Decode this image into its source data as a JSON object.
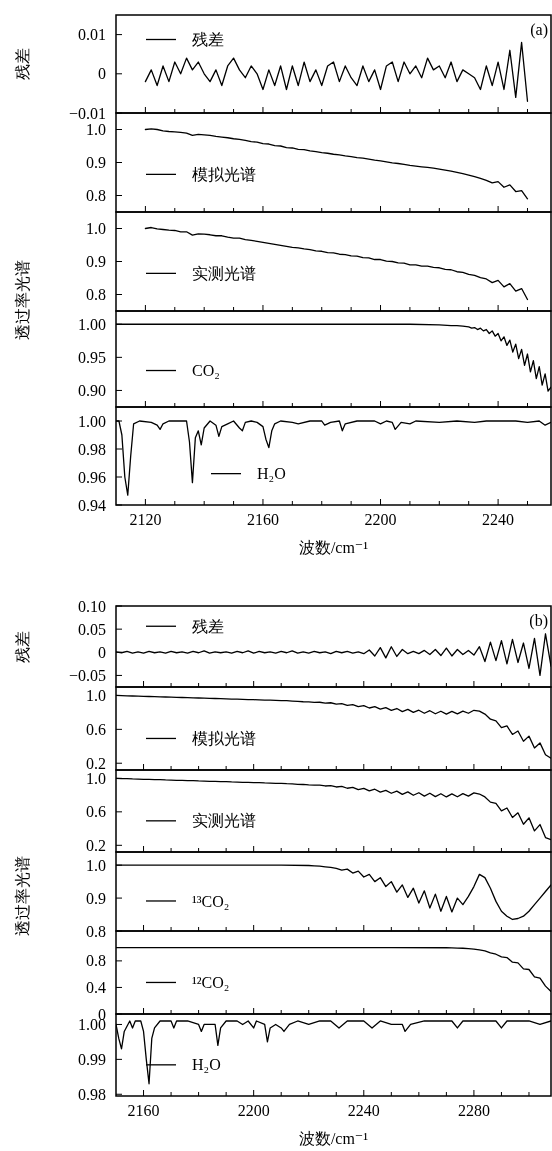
{
  "chart_data": [
    {
      "type": "line",
      "ylabel": "残差",
      "annotations": [
        "(a)"
      ],
      "legend": "top left",
      "tick_labels": "y",
      "xlim": [
        2110,
        2258
      ],
      "ylim": [
        -0.01,
        0.015
      ],
      "xticks": [
        2120,
        {
          "value": 2130,
          "label": null
        },
        {
          "value": 2140,
          "label": null
        },
        {
          "value": 2150,
          "label": null
        },
        2160,
        {
          "value": 2170,
          "label": null
        },
        {
          "value": 2180,
          "label": null
        },
        {
          "value": 2190,
          "label": null
        },
        2200,
        {
          "value": 2210,
          "label": null
        },
        {
          "value": 2220,
          "label": null
        },
        {
          "value": 2230,
          "label": null
        },
        2240,
        {
          "value": 2250,
          "label": null
        }
      ],
      "yticks": [
        {
          "value": -0.01,
          "label": "−0.01"
        },
        0,
        0.01
      ],
      "x": [
        2120,
        2122,
        2124,
        2126,
        2128,
        2130,
        2132,
        2134,
        2136,
        2138,
        2140,
        2142,
        2144,
        2146,
        2148,
        2150,
        2152,
        2154,
        2156,
        2158,
        2160,
        2162,
        2164,
        2166,
        2168,
        2170,
        2172,
        2174,
        2176,
        2178,
        2180,
        2182,
        2184,
        2186,
        2188,
        2190,
        2192,
        2194,
        2196,
        2198,
        2200,
        2202,
        2204,
        2206,
        2208,
        2210,
        2212,
        2214,
        2216,
        2218,
        2220,
        2222,
        2224,
        2226,
        2228,
        2230,
        2232,
        2234,
        2236,
        2238,
        2240,
        2242,
        2244,
        2246,
        2248,
        2250
      ],
      "series": [
        {
          "name": "残差",
          "color": "#000000",
          "values": [
            -0.002,
            0.001,
            -0.003,
            0.002,
            -0.002,
            0.003,
            0,
            0.004,
            0.001,
            0.003,
            0,
            -0.002,
            0.001,
            -0.003,
            0.002,
            0.004,
            0.001,
            -0.001,
            0.002,
            0,
            -0.004,
            0.001,
            -0.003,
            0.002,
            -0.004,
            0.002,
            -0.003,
            0.003,
            -0.002,
            0.001,
            -0.003,
            0.002,
            0.003,
            -0.002,
            0.002,
            -0.001,
            -0.003,
            0.002,
            -0.002,
            0.001,
            -0.004,
            0.002,
            0.003,
            -0.002,
            0.003,
            0,
            0.002,
            -0.001,
            0.004,
            0.001,
            0.002,
            -0.001,
            0.003,
            -0.002,
            0.001,
            0,
            -0.001,
            -0.004,
            0.002,
            -0.003,
            0.003,
            -0.004,
            0.006,
            -0.006,
            0.008,
            -0.007
          ]
        }
      ]
    },
    {
      "type": "line",
      "legend": "left",
      "tick_labels": "y",
      "xlim": [
        2110,
        2258
      ],
      "ylim": [
        0.75,
        1.05
      ],
      "xticks": [
        2120,
        {
          "value": 2130,
          "label": null
        },
        {
          "value": 2140,
          "label": null
        },
        {
          "value": 2150,
          "label": null
        },
        2160,
        {
          "value": 2170,
          "label": null
        },
        {
          "value": 2180,
          "label": null
        },
        {
          "value": 2190,
          "label": null
        },
        2200,
        {
          "value": 2210,
          "label": null
        },
        {
          "value": 2220,
          "label": null
        },
        {
          "value": 2230,
          "label": null
        },
        2240,
        {
          "value": 2250,
          "label": null
        }
      ],
      "yticks": [
        0.8,
        0.9,
        {
          "value": 1,
          "label": "1.0"
        }
      ],
      "x": [
        2120,
        2122,
        2124,
        2126,
        2128,
        2130,
        2132,
        2134,
        2136,
        2138,
        2140,
        2142,
        2144,
        2146,
        2148,
        2150,
        2152,
        2154,
        2156,
        2158,
        2160,
        2162,
        2164,
        2166,
        2168,
        2170,
        2172,
        2174,
        2176,
        2178,
        2180,
        2182,
        2184,
        2186,
        2188,
        2190,
        2192,
        2194,
        2196,
        2198,
        2200,
        2202,
        2204,
        2206,
        2208,
        2210,
        2212,
        2214,
        2216,
        2218,
        2220,
        2222,
        2224,
        2226,
        2228,
        2230,
        2232,
        2234,
        2236,
        2238,
        2240,
        2242,
        2244,
        2246,
        2248,
        2250
      ],
      "series": [
        {
          "name": "模拟光谱",
          "color": "#000000",
          "values": [
            1.0,
            1.002,
            1.0,
            0.996,
            0.994,
            0.993,
            0.991,
            0.989,
            0.982,
            0.985,
            0.984,
            0.982,
            0.979,
            0.977,
            0.975,
            0.972,
            0.97,
            0.967,
            0.963,
            0.962,
            0.957,
            0.956,
            0.951,
            0.95,
            0.945,
            0.944,
            0.94,
            0.939,
            0.935,
            0.933,
            0.93,
            0.928,
            0.925,
            0.923,
            0.92,
            0.918,
            0.915,
            0.913,
            0.91,
            0.907,
            0.905,
            0.902,
            0.899,
            0.897,
            0.894,
            0.891,
            0.889,
            0.887,
            0.885,
            0.883,
            0.88,
            0.877,
            0.874,
            0.87,
            0.866,
            0.862,
            0.857,
            0.852,
            0.846,
            0.838,
            0.842,
            0.825,
            0.832,
            0.812,
            0.815,
            0.79
          ]
        }
      ]
    },
    {
      "type": "line",
      "legend": "left",
      "tick_labels": "y",
      "xlim": [
        2110,
        2258
      ],
      "ylim": [
        0.75,
        1.05
      ],
      "xticks": [
        2120,
        {
          "value": 2130,
          "label": null
        },
        {
          "value": 2140,
          "label": null
        },
        {
          "value": 2150,
          "label": null
        },
        2160,
        {
          "value": 2170,
          "label": null
        },
        {
          "value": 2180,
          "label": null
        },
        {
          "value": 2190,
          "label": null
        },
        2200,
        {
          "value": 2210,
          "label": null
        },
        {
          "value": 2220,
          "label": null
        },
        {
          "value": 2230,
          "label": null
        },
        2240,
        {
          "value": 2250,
          "label": null
        }
      ],
      "yticks": [
        0.8,
        0.9,
        {
          "value": 1,
          "label": "1.0"
        }
      ],
      "x": [
        2120,
        2122,
        2124,
        2126,
        2128,
        2130,
        2132,
        2134,
        2136,
        2138,
        2140,
        2142,
        2144,
        2146,
        2148,
        2150,
        2152,
        2154,
        2156,
        2158,
        2160,
        2162,
        2164,
        2166,
        2168,
        2170,
        2172,
        2174,
        2176,
        2178,
        2180,
        2182,
        2184,
        2186,
        2188,
        2190,
        2192,
        2194,
        2196,
        2198,
        2200,
        2202,
        2204,
        2206,
        2208,
        2210,
        2212,
        2214,
        2216,
        2218,
        2220,
        2222,
        2224,
        2226,
        2228,
        2230,
        2232,
        2234,
        2236,
        2238,
        2240,
        2242,
        2244,
        2246,
        2248,
        2250
      ],
      "series": [
        {
          "name": "实测光谱",
          "color": "#000000",
          "values": [
            1.0,
            1.003,
            0.999,
            0.997,
            0.995,
            0.994,
            0.99,
            0.99,
            0.98,
            0.984,
            0.983,
            0.981,
            0.978,
            0.978,
            0.974,
            0.971,
            0.971,
            0.966,
            0.964,
            0.961,
            0.958,
            0.955,
            0.952,
            0.949,
            0.946,
            0.943,
            0.941,
            0.938,
            0.936,
            0.932,
            0.931,
            0.927,
            0.926,
            0.922,
            0.921,
            0.917,
            0.916,
            0.912,
            0.911,
            0.906,
            0.906,
            0.901,
            0.9,
            0.896,
            0.895,
            0.89,
            0.89,
            0.886,
            0.886,
            0.882,
            0.881,
            0.876,
            0.875,
            0.869,
            0.867,
            0.861,
            0.858,
            0.851,
            0.847,
            0.836,
            0.843,
            0.823,
            0.833,
            0.81,
            0.818,
            0.785
          ]
        }
      ]
    },
    {
      "type": "line",
      "ylabel": "透过率光谱",
      "legend": "left",
      "tick_labels": "y",
      "xlim": [
        2110,
        2258
      ],
      "ylim": [
        0.875,
        1.02
      ],
      "xticks": [
        2120,
        {
          "value": 2130,
          "label": null
        },
        {
          "value": 2140,
          "label": null
        },
        {
          "value": 2150,
          "label": null
        },
        2160,
        {
          "value": 2170,
          "label": null
        },
        {
          "value": 2180,
          "label": null
        },
        {
          "value": 2190,
          "label": null
        },
        2200,
        {
          "value": 2210,
          "label": null
        },
        {
          "value": 2220,
          "label": null
        },
        {
          "value": 2230,
          "label": null
        },
        2240,
        {
          "value": 2250,
          "label": null
        }
      ],
      "yticks": [
        {
          "value": 0.9,
          "label": "0.90"
        },
        0.95,
        {
          "value": 1,
          "label": "1.00"
        }
      ],
      "x": [
        2110,
        2150,
        2190,
        2210,
        2220,
        2224,
        2226,
        2228,
        2230,
        2231,
        2232,
        2233,
        2234,
        2235,
        2236,
        2237,
        2238,
        2239,
        2240,
        2241,
        2242,
        2243,
        2244,
        2245,
        2246,
        2247,
        2248,
        2249,
        2250,
        2251,
        2252,
        2253,
        2254,
        2255,
        2256,
        2257,
        2258
      ],
      "series": [
        {
          "name": "CO₂",
          "color": "#000000",
          "values": [
            1.0,
            1.0,
            1.0,
            1.0,
            0.999,
            0.998,
            0.998,
            0.997,
            0.996,
            0.994,
            0.995,
            0.992,
            0.994,
            0.99,
            0.992,
            0.986,
            0.99,
            0.982,
            0.986,
            0.975,
            0.981,
            0.968,
            0.976,
            0.958,
            0.97,
            0.948,
            0.962,
            0.938,
            0.955,
            0.928,
            0.945,
            0.918,
            0.936,
            0.908,
            0.925,
            0.899,
            0.905
          ]
        }
      ]
    },
    {
      "type": "line",
      "xlabel": "波数/cm⁻¹",
      "legend": "bottom",
      "xlim": [
        2110,
        2258
      ],
      "ylim": [
        0.94,
        1.01
      ],
      "xticks": [
        2120,
        {
          "value": 2130,
          "label": null
        },
        {
          "value": 2140,
          "label": null
        },
        {
          "value": 2150,
          "label": null
        },
        2160,
        {
          "value": 2170,
          "label": null
        },
        {
          "value": 2180,
          "label": null
        },
        {
          "value": 2190,
          "label": null
        },
        2200,
        {
          "value": 2210,
          "label": null
        },
        {
          "value": 2220,
          "label": null
        },
        {
          "value": 2230,
          "label": null
        },
        2240,
        {
          "value": 2250,
          "label": null
        }
      ],
      "yticks": [
        {
          "value": 0.94,
          "label": "0.94"
        },
        {
          "value": 0.96,
          "label": "0.96"
        },
        {
          "value": 0.98,
          "label": "0.98"
        },
        {
          "value": 1,
          "label": "1.00"
        }
      ],
      "x": [
        2110,
        2111,
        2112,
        2113,
        2114,
        2115,
        2116,
        2118,
        2122,
        2124,
        2125,
        2126,
        2128,
        2134,
        2135,
        2136,
        2137,
        2138,
        2139,
        2140,
        2142,
        2144,
        2145,
        2146,
        2148,
        2150,
        2152,
        2153,
        2154,
        2156,
        2158,
        2160,
        2161,
        2162,
        2163,
        2164,
        2166,
        2170,
        2172,
        2176,
        2180,
        2181,
        2183,
        2186,
        2187,
        2188,
        2192,
        2198,
        2200,
        2202,
        2204,
        2205,
        2207,
        2210,
        2212,
        2220,
        2226,
        2232,
        2236,
        2246,
        2250,
        2254,
        2256,
        2258
      ],
      "series": [
        {
          "name": "H₂O",
          "color": "#000000",
          "values": [
            1.0,
            1.0,
            0.99,
            0.96,
            0.947,
            0.975,
            0.998,
            1.0,
            0.999,
            0.997,
            0.994,
            0.998,
            1.0,
            1.0,
            0.985,
            0.956,
            0.988,
            0.993,
            0.983,
            0.995,
            1.0,
            0.997,
            0.989,
            0.996,
            0.998,
            1.0,
            0.995,
            0.993,
            0.999,
            1.0,
            0.999,
            0.996,
            0.987,
            0.981,
            0.993,
            0.998,
            1.0,
            0.999,
            0.998,
            1.0,
            1.0,
            0.997,
            0.999,
            1.0,
            0.993,
            0.998,
            1.0,
            1.0,
            0.998,
            1.0,
            0.999,
            0.994,
            0.999,
            0.998,
            1.0,
            0.999,
            1.0,
            0.999,
            1.0,
            1.0,
            0.999,
            1.0,
            0.997,
            0.999
          ]
        }
      ]
    },
    {
      "type": "line",
      "ylabel": "残差",
      "annotations": [
        "(b)"
      ],
      "legend": "top left",
      "tick_labels": "y",
      "xlim": [
        2150,
        2308
      ],
      "ylim": [
        -0.075,
        0.1
      ],
      "xticks": [
        2160,
        {
          "value": 2170,
          "label": null
        },
        {
          "value": 2180,
          "label": null
        },
        {
          "value": 2190,
          "label": null
        },
        2200,
        {
          "value": 2210,
          "label": null
        },
        {
          "value": 2220,
          "label": null
        },
        {
          "value": 2230,
          "label": null
        },
        2240,
        {
          "value": 2250,
          "label": null
        },
        {
          "value": 2260,
          "label": null
        },
        {
          "value": 2270,
          "label": null
        },
        2280,
        {
          "value": 2290,
          "label": null
        },
        {
          "value": 2300,
          "label": null
        }
      ],
      "yticks": [
        {
          "value": -0.05,
          "label": "−0.05"
        },
        0,
        0.05,
        {
          "value": 0.1,
          "label": "0.10"
        }
      ],
      "x": [
        2150,
        2152,
        2154,
        2156,
        2158,
        2160,
        2162,
        2164,
        2166,
        2168,
        2170,
        2172,
        2174,
        2176,
        2178,
        2180,
        2182,
        2184,
        2186,
        2188,
        2190,
        2192,
        2194,
        2196,
        2198,
        2200,
        2202,
        2204,
        2206,
        2208,
        2210,
        2212,
        2214,
        2216,
        2218,
        2220,
        2222,
        2224,
        2226,
        2228,
        2230,
        2232,
        2234,
        2236,
        2238,
        2240,
        2242,
        2244,
        2246,
        2248,
        2250,
        2252,
        2254,
        2256,
        2258,
        2260,
        2262,
        2264,
        2266,
        2268,
        2270,
        2272,
        2274,
        2276,
        2278,
        2280,
        2282,
        2284,
        2286,
        2288,
        2290,
        2292,
        2294,
        2296,
        2298,
        2300,
        2302,
        2304,
        2306,
        2308
      ],
      "series": [
        {
          "name": "残差",
          "color": "#000000",
          "values": [
            0.001,
            -0.001,
            0.002,
            -0.002,
            0.001,
            -0.002,
            0.002,
            -0.001,
            0.001,
            -0.002,
            0.002,
            -0.001,
            0.001,
            -0.002,
            0.002,
            -0.001,
            0.003,
            -0.002,
            0.001,
            -0.001,
            0.001,
            -0.002,
            0.002,
            -0.001,
            0.003,
            -0.002,
            0.002,
            -0.001,
            0.001,
            -0.002,
            0.002,
            -0.001,
            0.003,
            -0.002,
            0.001,
            -0.002,
            0.002,
            -0.001,
            0.001,
            -0.003,
            0.002,
            -0.001,
            0.002,
            -0.002,
            0.001,
            -0.003,
            0.005,
            -0.008,
            0.01,
            -0.012,
            0.012,
            -0.009,
            0.006,
            -0.003,
            0.002,
            -0.003,
            0.004,
            -0.005,
            0.006,
            -0.007,
            0.009,
            -0.008,
            0.006,
            -0.005,
            0.004,
            -0.006,
            0.012,
            -0.02,
            0.022,
            -0.018,
            0.025,
            -0.025,
            0.028,
            -0.022,
            0.02,
            -0.035,
            0.03,
            -0.05,
            0.04,
            -0.03
          ]
        }
      ]
    },
    {
      "type": "line",
      "legend": "left",
      "tick_labels": "y",
      "xlim": [
        2150,
        2308
      ],
      "ylim": [
        0.12,
        1.1
      ],
      "xticks": [
        2160,
        {
          "value": 2170,
          "label": null
        },
        {
          "value": 2180,
          "label": null
        },
        {
          "value": 2190,
          "label": null
        },
        2200,
        {
          "value": 2210,
          "label": null
        },
        {
          "value": 2220,
          "label": null
        },
        {
          "value": 2230,
          "label": null
        },
        2240,
        {
          "value": 2250,
          "label": null
        },
        {
          "value": 2260,
          "label": null
        },
        {
          "value": 2270,
          "label": null
        },
        2280,
        {
          "value": 2290,
          "label": null
        },
        {
          "value": 2300,
          "label": null
        }
      ],
      "yticks": [
        0.2,
        0.6,
        {
          "value": 1,
          "label": "1.0"
        }
      ],
      "x": [
        2150,
        2152,
        2154,
        2156,
        2158,
        2160,
        2162,
        2164,
        2166,
        2168,
        2170,
        2172,
        2174,
        2176,
        2178,
        2180,
        2182,
        2184,
        2186,
        2188,
        2190,
        2192,
        2194,
        2196,
        2198,
        2200,
        2202,
        2204,
        2206,
        2208,
        2210,
        2212,
        2214,
        2216,
        2218,
        2220,
        2222,
        2224,
        2226,
        2228,
        2230,
        2232,
        2234,
        2236,
        2238,
        2240,
        2242,
        2244,
        2246,
        2248,
        2250,
        2252,
        2254,
        2256,
        2258,
        2260,
        2262,
        2264,
        2266,
        2268,
        2270,
        2272,
        2274,
        2276,
        2278,
        2280,
        2282,
        2284,
        2286,
        2288,
        2290,
        2292,
        2294,
        2296,
        2298,
        2300,
        2302,
        2304,
        2306,
        2308
      ],
      "series": [
        {
          "name": "模拟光谱",
          "color": "#000000",
          "values": [
            1.0,
            0.998,
            0.996,
            0.994,
            0.992,
            0.99,
            0.988,
            0.986,
            0.984,
            0.982,
            0.98,
            0.978,
            0.976,
            0.974,
            0.972,
            0.97,
            0.968,
            0.966,
            0.964,
            0.962,
            0.96,
            0.958,
            0.956,
            0.954,
            0.952,
            0.95,
            0.948,
            0.946,
            0.944,
            0.942,
            0.94,
            0.938,
            0.934,
            0.93,
            0.926,
            0.924,
            0.918,
            0.92,
            0.91,
            0.914,
            0.898,
            0.904,
            0.884,
            0.892,
            0.868,
            0.88,
            0.852,
            0.868,
            0.838,
            0.856,
            0.824,
            0.846,
            0.81,
            0.836,
            0.8,
            0.826,
            0.79,
            0.82,
            0.784,
            0.814,
            0.78,
            0.812,
            0.782,
            0.816,
            0.79,
            0.825,
            0.815,
            0.78,
            0.72,
            0.7,
            0.62,
            0.64,
            0.54,
            0.58,
            0.46,
            0.52,
            0.38,
            0.44,
            0.3,
            0.26
          ]
        }
      ]
    },
    {
      "type": "line",
      "legend": "left",
      "tick_labels": "y",
      "xlim": [
        2150,
        2308
      ],
      "ylim": [
        0.12,
        1.1
      ],
      "xticks": [
        2160,
        {
          "value": 2170,
          "label": null
        },
        {
          "value": 2180,
          "label": null
        },
        {
          "value": 2190,
          "label": null
        },
        2200,
        {
          "value": 2210,
          "label": null
        },
        {
          "value": 2220,
          "label": null
        },
        {
          "value": 2230,
          "label": null
        },
        2240,
        {
          "value": 2250,
          "label": null
        },
        {
          "value": 2260,
          "label": null
        },
        {
          "value": 2270,
          "label": null
        },
        2280,
        {
          "value": 2290,
          "label": null
        },
        {
          "value": 2300,
          "label": null
        }
      ],
      "yticks": [
        0.2,
        0.6,
        {
          "value": 1,
          "label": "1.0"
        }
      ],
      "x": [
        2150,
        2152,
        2154,
        2156,
        2158,
        2160,
        2162,
        2164,
        2166,
        2168,
        2170,
        2172,
        2174,
        2176,
        2178,
        2180,
        2182,
        2184,
        2186,
        2188,
        2190,
        2192,
        2194,
        2196,
        2198,
        2200,
        2202,
        2204,
        2206,
        2208,
        2210,
        2212,
        2214,
        2216,
        2218,
        2220,
        2222,
        2224,
        2226,
        2228,
        2230,
        2232,
        2234,
        2236,
        2238,
        2240,
        2242,
        2244,
        2246,
        2248,
        2250,
        2252,
        2254,
        2256,
        2258,
        2260,
        2262,
        2264,
        2266,
        2268,
        2270,
        2272,
        2274,
        2276,
        2278,
        2280,
        2282,
        2284,
        2286,
        2288,
        2290,
        2292,
        2294,
        2296,
        2298,
        2300,
        2302,
        2304,
        2306,
        2308
      ],
      "series": [
        {
          "name": "实测光谱",
          "color": "#000000",
          "values": [
            1.0,
            0.997,
            0.996,
            0.993,
            0.992,
            0.989,
            0.988,
            0.985,
            0.984,
            0.981,
            0.98,
            0.977,
            0.976,
            0.973,
            0.972,
            0.969,
            0.968,
            0.965,
            0.964,
            0.961,
            0.96,
            0.957,
            0.956,
            0.953,
            0.952,
            0.949,
            0.948,
            0.945,
            0.944,
            0.941,
            0.94,
            0.936,
            0.934,
            0.929,
            0.927,
            0.922,
            0.919,
            0.919,
            0.909,
            0.913,
            0.897,
            0.905,
            0.882,
            0.893,
            0.866,
            0.881,
            0.85,
            0.87,
            0.836,
            0.857,
            0.822,
            0.847,
            0.808,
            0.838,
            0.798,
            0.828,
            0.788,
            0.822,
            0.782,
            0.816,
            0.778,
            0.814,
            0.78,
            0.818,
            0.788,
            0.827,
            0.813,
            0.778,
            0.716,
            0.702,
            0.612,
            0.646,
            0.532,
            0.588,
            0.452,
            0.528,
            0.372,
            0.448,
            0.292,
            0.268
          ]
        }
      ]
    },
    {
      "type": "line",
      "ylabel": "透过率光谱",
      "legend": "left",
      "tick_labels": "y",
      "xlim": [
        2150,
        2308
      ],
      "ylim": [
        0.8,
        1.04
      ],
      "xticks": [
        2160,
        {
          "value": 2170,
          "label": null
        },
        {
          "value": 2180,
          "label": null
        },
        {
          "value": 2190,
          "label": null
        },
        2200,
        {
          "value": 2210,
          "label": null
        },
        {
          "value": 2220,
          "label": null
        },
        {
          "value": 2230,
          "label": null
        },
        2240,
        {
          "value": 2250,
          "label": null
        },
        {
          "value": 2260,
          "label": null
        },
        {
          "value": 2270,
          "label": null
        },
        2280,
        {
          "value": 2290,
          "label": null
        },
        {
          "value": 2300,
          "label": null
        }
      ],
      "yticks": [
        0.8,
        0.9,
        {
          "value": 1,
          "label": "1.0"
        }
      ],
      "x": [
        2150,
        2180,
        2210,
        2220,
        2222,
        2224,
        2226,
        2228,
        2230,
        2232,
        2234,
        2236,
        2238,
        2240,
        2242,
        2244,
        2246,
        2248,
        2250,
        2252,
        2254,
        2256,
        2258,
        2260,
        2262,
        2264,
        2266,
        2268,
        2270,
        2272,
        2274,
        2276,
        2278,
        2280,
        2282,
        2284,
        2286,
        2288,
        2290,
        2292,
        2294,
        2296,
        2298,
        2300,
        2302,
        2304,
        2306,
        2308
      ],
      "series": [
        {
          "name": "¹³CO₂",
          "color": "#000000",
          "values": [
            1.0,
            1.0,
            1.0,
            0.999,
            0.998,
            0.997,
            0.995,
            0.993,
            0.99,
            0.985,
            0.988,
            0.976,
            0.982,
            0.964,
            0.972,
            0.95,
            0.962,
            0.935,
            0.95,
            0.918,
            0.94,
            0.902,
            0.93,
            0.885,
            0.922,
            0.87,
            0.912,
            0.86,
            0.905,
            0.858,
            0.9,
            0.88,
            0.905,
            0.935,
            0.972,
            0.962,
            0.93,
            0.89,
            0.86,
            0.845,
            0.835,
            0.838,
            0.845,
            0.86,
            0.88,
            0.9,
            0.92,
            0.94
          ]
        }
      ]
    },
    {
      "type": "line",
      "legend": "left",
      "tick_labels": "y",
      "xlim": [
        2150,
        2308
      ],
      "ylim": [
        0,
        1.25
      ],
      "xticks": [
        2160,
        {
          "value": 2170,
          "label": null
        },
        {
          "value": 2180,
          "label": null
        },
        {
          "value": 2190,
          "label": null
        },
        2200,
        {
          "value": 2210,
          "label": null
        },
        {
          "value": 2220,
          "label": null
        },
        {
          "value": 2230,
          "label": null
        },
        2240,
        {
          "value": 2250,
          "label": null
        },
        {
          "value": 2260,
          "label": null
        },
        {
          "value": 2270,
          "label": null
        },
        2280,
        {
          "value": 2290,
          "label": null
        },
        {
          "value": 2300,
          "label": null
        }
      ],
      "yticks": [
        0,
        0.4,
        0.8
      ],
      "x": [
        2150,
        2200,
        2250,
        2270,
        2272,
        2274,
        2276,
        2278,
        2280,
        2282,
        2284,
        2286,
        2288,
        2290,
        2292,
        2294,
        2296,
        2298,
        2300,
        2302,
        2304,
        2306,
        2308
      ],
      "series": [
        {
          "name": "¹²CO₂",
          "color": "#000000",
          "values": [
            1.0,
            1.0,
            1.0,
            0.998,
            0.996,
            0.993,
            0.99,
            0.985,
            0.978,
            0.965,
            0.95,
            0.92,
            0.9,
            0.86,
            0.85,
            0.78,
            0.77,
            0.68,
            0.67,
            0.56,
            0.54,
            0.42,
            0.34
          ]
        }
      ]
    },
    {
      "type": "line",
      "xlabel": "波数/cm⁻¹",
      "legend": "left",
      "xlim": [
        2150,
        2308
      ],
      "ylim": [
        0.9795,
        1.003
      ],
      "xticks": [
        2160,
        {
          "value": 2170,
          "label": null
        },
        {
          "value": 2180,
          "label": null
        },
        {
          "value": 2190,
          "label": null
        },
        2200,
        {
          "value": 2210,
          "label": null
        },
        {
          "value": 2220,
          "label": null
        },
        {
          "value": 2230,
          "label": null
        },
        2240,
        {
          "value": 2250,
          "label": null
        },
        {
          "value": 2260,
          "label": null
        },
        {
          "value": 2270,
          "label": null
        },
        2280,
        {
          "value": 2290,
          "label": null
        },
        {
          "value": 2300,
          "label": null
        }
      ],
      "yticks": [
        {
          "value": 0.98,
          "label": "0.98"
        },
        {
          "value": 0.99,
          "label": "0.99"
        },
        {
          "value": 1,
          "label": "1.00"
        }
      ],
      "x": [
        2150,
        2151,
        2152,
        2153,
        2155,
        2156,
        2157,
        2159,
        2160,
        2161,
        2162,
        2163,
        2164,
        2166,
        2170,
        2171,
        2172,
        2176,
        2180,
        2181,
        2182,
        2186,
        2187,
        2188,
        2190,
        2194,
        2196,
        2198,
        2200,
        2201,
        2204,
        2205,
        2206,
        2208,
        2210,
        2211,
        2213,
        2216,
        2220,
        2224,
        2228,
        2231,
        2234,
        2240,
        2243,
        2246,
        2250,
        2254,
        2255,
        2257,
        2262,
        2268,
        2272,
        2274,
        2276,
        2282,
        2288,
        2290,
        2292,
        2300,
        2304,
        2308
      ],
      "series": [
        {
          "name": "H₂O",
          "color": "#000000",
          "values": [
            1.0,
            0.996,
            0.993,
            0.998,
            1.001,
            0.999,
            1.001,
            1.001,
            0.998,
            0.99,
            0.983,
            0.996,
            0.999,
            1.001,
            1.001,
            0.999,
            1.001,
            1.001,
            1.0,
            0.998,
            1.0,
            1.0,
            0.994,
            0.999,
            1.001,
            1.001,
            1.0,
            1.001,
            0.999,
            1.001,
            1.0,
            0.995,
            0.999,
            1.0,
            0.999,
            0.998,
            1.0,
            1.001,
            1.0,
            1.001,
            1.001,
            0.999,
            1.001,
            1.001,
            0.999,
            1.001,
            1.0,
            1.0,
            0.998,
            1.0,
            1.001,
            1.001,
            1.001,
            0.999,
            1.001,
            1.001,
            1.001,
            0.999,
            1.001,
            1.001,
            1.0,
            1.001
          ]
        }
      ]
    }
  ]
}
